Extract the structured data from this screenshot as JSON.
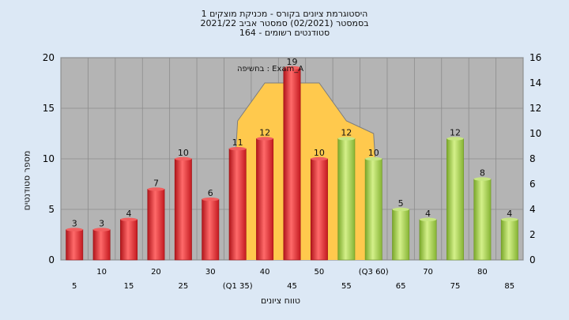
{
  "chart": {
    "title_lines": [
      "היסטוגרמת ציונים בקורס - מכניקת מוצקים 1",
      "בסמסטר  (02/2021)  סמסטר אביב 2021/22",
      "סטודנטים רשומים - 164"
    ],
    "annotation": "בחשיפה : Exam_A"
  },
  "chart_data": {
    "type": "bar",
    "title": "היסטוגרמת ציונים בקורס - מכניקת מוצקים 1",
    "subtitle": "בסמסטר  (02/2021)  סמסטר אביב 2021/22 | סטודנטים רשומים - 164",
    "xlabel": "טווח ציונים",
    "ylabel": "מספר סטודנטים",
    "ylim": [
      0,
      20
    ],
    "y2lim": [
      0,
      16
    ],
    "yticks": [
      0,
      5,
      10,
      15,
      20
    ],
    "y2ticks": [
      0,
      2,
      4,
      6,
      8,
      10,
      12,
      14,
      16
    ],
    "grid": true,
    "categories": [
      "5",
      "10",
      "15",
      "20",
      "25",
      "30",
      "(Q1 35)",
      "40",
      "45",
      "50",
      "55",
      "(Q3 60)",
      "65",
      "70",
      "75",
      "80",
      "85"
    ],
    "values": [
      3,
      3,
      4,
      7,
      10,
      6,
      11,
      12,
      19,
      10,
      12,
      10,
      5,
      4,
      12,
      8,
      4
    ],
    "bar_colors": [
      "red",
      "red",
      "red",
      "red",
      "red",
      "red",
      "red",
      "red",
      "red",
      "red",
      "green",
      "green",
      "green",
      "green",
      "green",
      "green",
      "green"
    ],
    "highlight_area": {
      "color": "#ffc94d",
      "points_x_index": [
        6,
        7,
        8,
        9,
        10,
        11
      ],
      "right_axis_values": [
        11,
        14,
        14,
        14,
        11,
        10
      ]
    },
    "colors": {
      "red": "#e8262c",
      "green": "#9ccc44",
      "plot_bg": "#b4b4b4",
      "page_bg": "#dce8f5",
      "area": "#ffc94d"
    }
  }
}
